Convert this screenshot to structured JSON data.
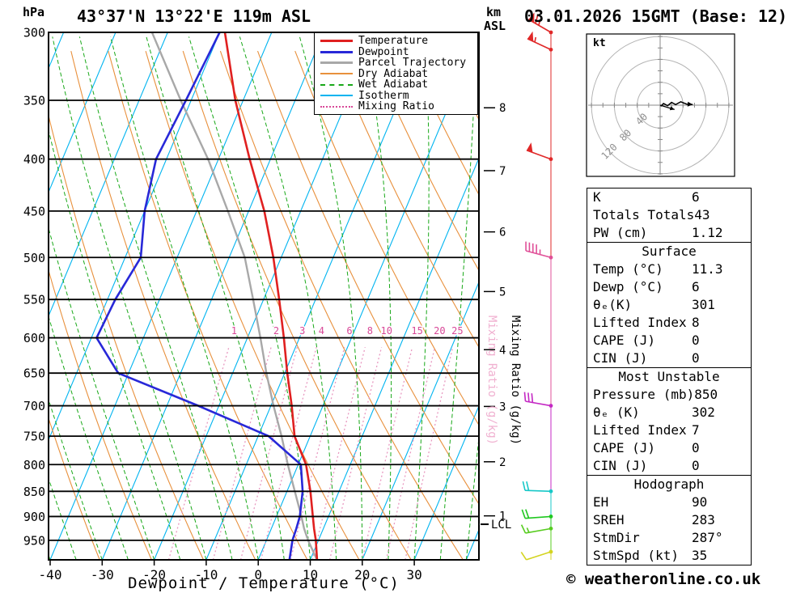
{
  "header": {
    "pressure_unit": "hPa",
    "title": "43°37'N 13°22'E 119m ASL",
    "km_label": "km",
    "asl_label": "ASL",
    "datetime": "03.01.2026 15GMT (Base: 12)"
  },
  "legend": {
    "items": [
      {
        "label": "Temperature",
        "color": "#e02020",
        "style": "solid",
        "weight": 3
      },
      {
        "label": "Dewpoint",
        "color": "#2828d8",
        "style": "solid",
        "weight": 3
      },
      {
        "label": "Parcel Trajectory",
        "color": "#a8a8a8",
        "style": "solid",
        "weight": 3
      },
      {
        "label": "Dry Adiabat",
        "color": "#e8903c",
        "style": "solid",
        "weight": 2
      },
      {
        "label": "Wet Adiabat",
        "color": "#18a818",
        "style": "dashed",
        "weight": 2
      },
      {
        "label": "Isotherm",
        "color": "#00b4f0",
        "style": "solid",
        "weight": 2
      },
      {
        "label": "Mixing Ratio",
        "color": "#d84898",
        "style": "dotted",
        "weight": 2
      }
    ]
  },
  "axes": {
    "pressure_ticks": [
      300,
      350,
      400,
      450,
      500,
      550,
      600,
      650,
      700,
      750,
      800,
      850,
      900,
      950
    ],
    "temp_ticks": [
      -40,
      -30,
      -20,
      -10,
      0,
      10,
      20,
      30
    ],
    "xlabel": "Dewpoint / Temperature (°C)",
    "km_ticks": [
      1,
      2,
      3,
      4,
      5,
      6,
      7,
      8
    ],
    "mixing_ratio_label": "Mixing Ratio (g/kg)",
    "lcl_label": "LCL"
  },
  "chart_data": {
    "type": "skew-t-log-p-sounding",
    "pressure_range_hPa": [
      300,
      993
    ],
    "temp_axis_range_C": [
      -40,
      40
    ],
    "pressure_hPa": [
      993,
      950,
      925,
      900,
      850,
      800,
      750,
      700,
      650,
      600,
      550,
      500,
      450,
      400,
      350,
      300
    ],
    "temperature_C": [
      11.3,
      9.5,
      8.2,
      7.0,
      4.5,
      1.5,
      -3.0,
      -6.0,
      -9.5,
      -13.0,
      -17.0,
      -21.5,
      -27.0,
      -34.0,
      -41.5,
      -49.0
    ],
    "dewpoint_C": [
      6.0,
      5.0,
      4.8,
      4.5,
      3.0,
      0.5,
      -8.0,
      -24.0,
      -42.0,
      -49.0,
      -48.5,
      -47.0,
      -50.0,
      -52.0,
      -51.0,
      -50.0
    ],
    "parcel_C": [
      11.3,
      8.0,
      6.3,
      4.8,
      1.5,
      -2.0,
      -5.5,
      -9.5,
      -13.5,
      -17.5,
      -22.0,
      -27.0,
      -34.0,
      -42.0,
      -52.0,
      -63.0
    ],
    "lcl_pressure_hPa": 916,
    "mixing_ratio_lines_gkg": [
      1,
      2,
      3,
      4,
      6,
      8,
      10,
      15,
      20,
      25
    ],
    "winds": [
      {
        "p": 300,
        "dir_deg": 300,
        "speed_kt": 65,
        "color": "#e02828"
      },
      {
        "p": 312,
        "dir_deg": 295,
        "speed_kt": 55,
        "color": "#e02828"
      },
      {
        "p": 400,
        "dir_deg": 290,
        "speed_kt": 50,
        "color": "#e02828"
      },
      {
        "p": 500,
        "dir_deg": 285,
        "speed_kt": 45,
        "color": "#e05098"
      },
      {
        "p": 700,
        "dir_deg": 280,
        "speed_kt": 30,
        "color": "#c428c4"
      },
      {
        "p": 850,
        "dir_deg": 272,
        "speed_kt": 20,
        "color": "#18c8c8"
      },
      {
        "p": 900,
        "dir_deg": 266,
        "speed_kt": 18,
        "color": "#20c820"
      },
      {
        "p": 925,
        "dir_deg": 260,
        "speed_kt": 15,
        "color": "#58cc20"
      },
      {
        "p": 975,
        "dir_deg": 252,
        "speed_kt": 10,
        "color": "#d4d420"
      }
    ],
    "colors": {
      "temperature": "#e02020",
      "dewpoint": "#2828d8",
      "parcel": "#a8a8a8",
      "dry_adiabat": "#e8903c",
      "wet_adiabat": "#18a818",
      "isotherm": "#00b4f0",
      "mixing_ratio": "#e898c0",
      "mixing_label": "#d84898",
      "mixing_label_light": "#f0b0d0"
    }
  },
  "hodograph": {
    "unit": "kt",
    "ring_values_kt": [
      40,
      80,
      120
    ],
    "trace_uv_kt": [
      [
        1,
        -2
      ],
      [
        6,
        3
      ],
      [
        13,
        -1
      ],
      [
        20,
        5
      ],
      [
        27,
        1
      ],
      [
        36,
        6
      ],
      [
        46,
        2
      ],
      [
        57,
        1
      ]
    ],
    "storm_motion": {
      "dir_deg": 287,
      "speed_kt": 35
    }
  },
  "stats": {
    "summary_rows": [
      {
        "label": "K",
        "value": "6"
      },
      {
        "label": "Totals Totals",
        "value": "43"
      },
      {
        "label": "PW (cm)",
        "value": "1.12"
      }
    ],
    "surface": {
      "title": "Surface",
      "rows": [
        {
          "label": "Temp (°C)",
          "value": "11.3"
        },
        {
          "label": "Dewp (°C)",
          "value": "6"
        },
        {
          "label": "θₑ(K)",
          "value": "301"
        },
        {
          "label": "Lifted Index",
          "value": "8"
        },
        {
          "label": "CAPE (J)",
          "value": "0"
        },
        {
          "label": "CIN (J)",
          "value": "0"
        }
      ]
    },
    "most_unstable": {
      "title": "Most Unstable",
      "rows": [
        {
          "label": "Pressure (mb)",
          "value": "850"
        },
        {
          "label": "θₑ (K)",
          "value": "302"
        },
        {
          "label": "Lifted Index",
          "value": "7"
        },
        {
          "label": "CAPE (J)",
          "value": "0"
        },
        {
          "label": "CIN (J)",
          "value": "0"
        }
      ]
    },
    "hodograph": {
      "title": "Hodograph",
      "rows": [
        {
          "label": "EH",
          "value": "90"
        },
        {
          "label": "SREH",
          "value": "283"
        },
        {
          "label": "StmDir",
          "value": "287°"
        },
        {
          "label": "StmSpd (kt)",
          "value": "35"
        }
      ]
    }
  },
  "footer": {
    "copyright": "© weatheronline.co.uk"
  }
}
